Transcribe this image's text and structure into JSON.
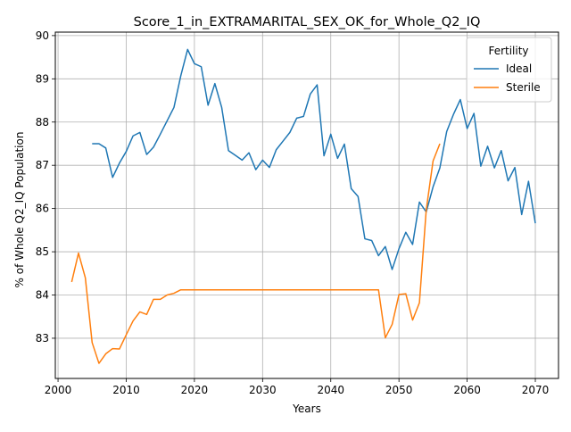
{
  "chart_data": {
    "type": "line",
    "title": "Score_1_in_EXTRAMARITAL_SEX_OK_for_Whole_Q2_IQ",
    "xlabel": "Years",
    "ylabel": "% of Whole Q2_IQ Population",
    "xlim": [
      1999.6,
      2073.4
    ],
    "ylim": [
      82.07,
      90.08
    ],
    "xticks": [
      2000,
      2010,
      2020,
      2030,
      2040,
      2050,
      2060,
      2070
    ],
    "yticks": [
      83,
      84,
      85,
      86,
      87,
      88,
      89,
      90
    ],
    "grid": true,
    "legend": {
      "title": "Fertility",
      "position": "top-right"
    },
    "series": [
      {
        "name": "Ideal",
        "color": "#1f77b4",
        "x": [
          2005,
          2006,
          2007,
          2008,
          2009,
          2010,
          2011,
          2012,
          2013,
          2014,
          2015,
          2016,
          2017,
          2018,
          2019,
          2020,
          2021,
          2022,
          2023,
          2024,
          2025,
          2026,
          2027,
          2028,
          2029,
          2030,
          2031,
          2032,
          2033,
          2034,
          2035,
          2036,
          2037,
          2038,
          2039,
          2040,
          2041,
          2042,
          2043,
          2044,
          2045,
          2046,
          2047,
          2048,
          2049,
          2050,
          2051,
          2052,
          2053,
          2054,
          2055,
          2056,
          2057,
          2058,
          2059,
          2060,
          2061,
          2062,
          2063,
          2064,
          2065,
          2066,
          2067,
          2068,
          2069,
          2070
        ],
        "values": [
          87.5,
          87.5,
          87.4,
          86.72,
          87.05,
          87.32,
          87.68,
          87.76,
          87.25,
          87.42,
          87.72,
          88.03,
          88.34,
          89.07,
          89.68,
          89.35,
          89.28,
          88.39,
          88.89,
          88.34,
          87.34,
          87.23,
          87.12,
          87.29,
          86.9,
          87.12,
          86.95,
          87.36,
          87.56,
          87.76,
          88.09,
          88.13,
          88.65,
          88.86,
          87.22,
          87.72,
          87.16,
          87.49,
          86.46,
          86.28,
          85.3,
          85.26,
          84.91,
          85.12,
          84.59,
          85.07,
          85.45,
          85.17,
          86.15,
          85.92,
          86.5,
          86.94,
          87.78,
          88.18,
          88.52,
          87.85,
          88.2,
          86.98,
          87.44,
          86.94,
          87.34,
          86.64,
          86.95,
          85.86,
          86.63,
          85.66
        ]
      },
      {
        "name": "Sterile",
        "color": "#ff7f0e",
        "x": [
          2002,
          2003,
          2004,
          2005,
          2006,
          2007,
          2008,
          2009,
          2010,
          2011,
          2012,
          2013,
          2014,
          2015,
          2016,
          2017,
          2018,
          2019,
          2020,
          2021,
          2022,
          2023,
          2024,
          2025,
          2026,
          2027,
          2028,
          2029,
          2030,
          2031,
          2032,
          2033,
          2034,
          2035,
          2036,
          2037,
          2038,
          2039,
          2040,
          2041,
          2042,
          2043,
          2044,
          2045,
          2046,
          2047,
          2048,
          2049,
          2050,
          2051,
          2052,
          2053,
          2054,
          2055,
          2056
        ],
        "values": [
          84.3,
          84.97,
          84.4,
          82.9,
          82.42,
          82.64,
          82.76,
          82.75,
          83.08,
          83.4,
          83.61,
          83.55,
          83.9,
          83.9,
          84.0,
          84.04,
          84.12,
          84.12,
          84.12,
          84.12,
          84.12,
          84.12,
          84.12,
          84.12,
          84.12,
          84.12,
          84.12,
          84.12,
          84.12,
          84.12,
          84.12,
          84.12,
          84.12,
          84.12,
          84.12,
          84.12,
          84.12,
          84.12,
          84.12,
          84.12,
          84.12,
          84.12,
          84.12,
          84.12,
          84.12,
          84.12,
          83.01,
          83.32,
          84.01,
          84.03,
          83.42,
          83.82,
          85.97,
          87.1,
          87.5
        ]
      }
    ]
  }
}
